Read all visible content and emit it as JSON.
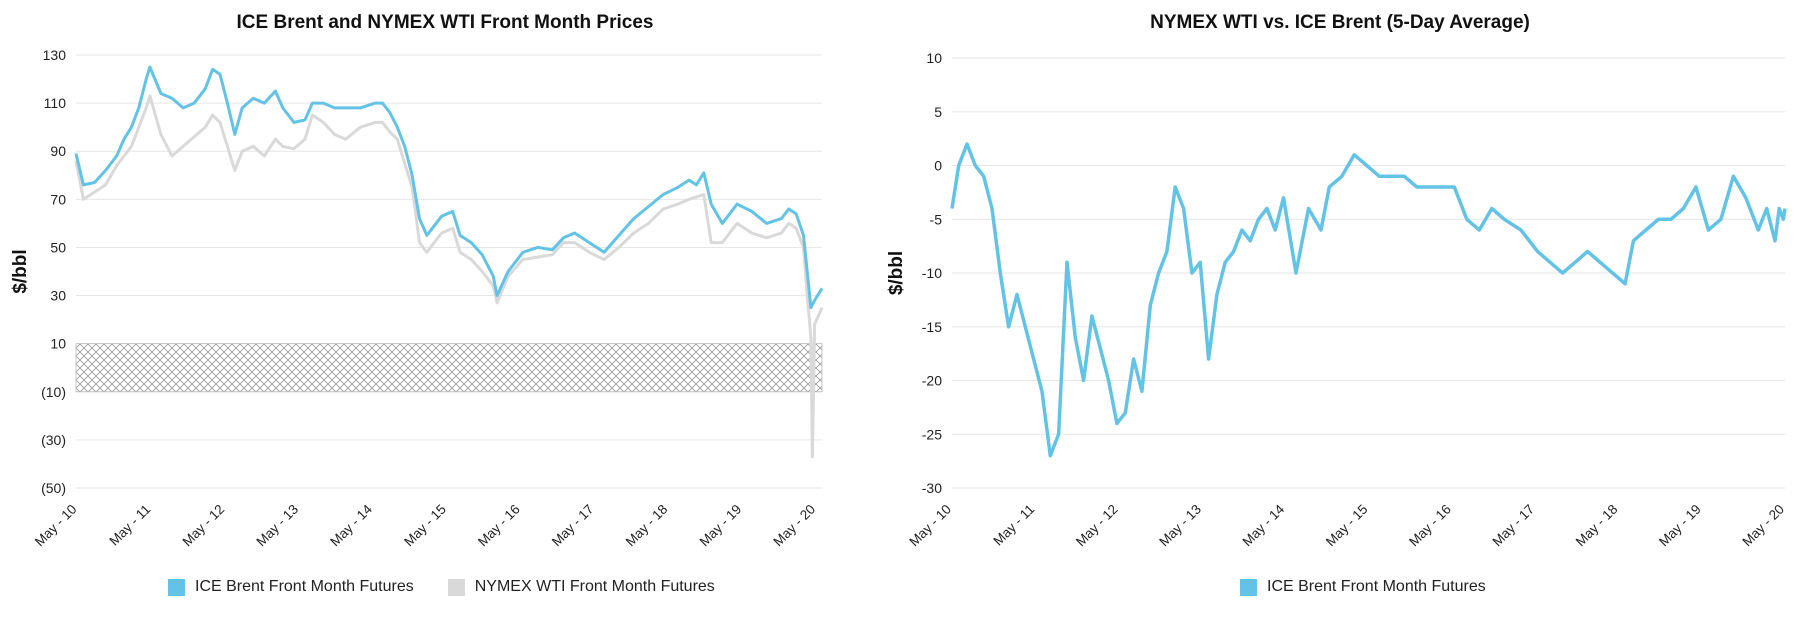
{
  "colors": {
    "brent": "#63c3e6",
    "wti": "#d9d9d9",
    "grid": "#e6e6e6",
    "hatch": "#999999"
  },
  "chart_data": [
    {
      "type": "line",
      "title": "ICE Brent and NYMEX WTI Front Month Prices",
      "ylabel": "$/bbl",
      "xlabel": "",
      "ylim": [
        -50,
        130
      ],
      "yticks": [
        130,
        110,
        90,
        70,
        50,
        30,
        10,
        -10,
        -30,
        -50
      ],
      "yticklabels": [
        "130",
        "110",
        "90",
        "70",
        "50",
        "30",
        "10",
        "(10)",
        "(30)",
        "(50)"
      ],
      "xlim": [
        2010.35,
        2020.45
      ],
      "xticks": [
        2010.37,
        2011.37,
        2012.37,
        2013.37,
        2014.37,
        2015.37,
        2016.37,
        2017.37,
        2018.37,
        2019.37,
        2020.37
      ],
      "xticklabels": [
        "May - 10",
        "May - 11",
        "May - 12",
        "May - 13",
        "May - 14",
        "May - 15",
        "May - 16",
        "May - 17",
        "May - 18",
        "May - 19",
        "May - 20"
      ],
      "grid": true,
      "hatched_band": [
        -10,
        10
      ],
      "legend": "bottom",
      "series": [
        {
          "name": "ICE Brent Front Month Futures",
          "x": [
            2010.35,
            2010.45,
            2010.6,
            2010.75,
            2010.9,
            2011.0,
            2011.1,
            2011.2,
            2011.3,
            2011.35,
            2011.5,
            2011.65,
            2011.8,
            2011.95,
            2012.1,
            2012.2,
            2012.3,
            2012.4,
            2012.5,
            2012.6,
            2012.75,
            2012.9,
            2013.05,
            2013.15,
            2013.3,
            2013.45,
            2013.55,
            2013.7,
            2013.85,
            2014.0,
            2014.2,
            2014.4,
            2014.5,
            2014.6,
            2014.7,
            2014.8,
            2014.9,
            2015.0,
            2015.1,
            2015.3,
            2015.45,
            2015.55,
            2015.7,
            2015.85,
            2016.0,
            2016.05,
            2016.2,
            2016.4,
            2016.6,
            2016.8,
            2016.95,
            2017.1,
            2017.3,
            2017.5,
            2017.7,
            2017.9,
            2018.1,
            2018.3,
            2018.5,
            2018.65,
            2018.75,
            2018.85,
            2018.95,
            2019.1,
            2019.3,
            2019.5,
            2019.7,
            2019.9,
            2020.0,
            2020.1,
            2020.2,
            2020.25,
            2020.3,
            2020.35,
            2020.45
          ],
          "values": [
            89,
            76,
            77,
            82,
            88,
            95,
            100,
            108,
            120,
            125,
            114,
            112,
            108,
            110,
            116,
            124,
            122,
            110,
            97,
            108,
            112,
            110,
            115,
            108,
            102,
            103,
            110,
            110,
            108,
            108,
            108,
            110,
            110,
            106,
            100,
            92,
            80,
            62,
            55,
            63,
            65,
            55,
            52,
            47,
            38,
            30,
            40,
            48,
            50,
            49,
            54,
            56,
            52,
            48,
            55,
            62,
            67,
            72,
            75,
            78,
            76,
            81,
            68,
            60,
            68,
            65,
            60,
            62,
            66,
            64,
            55,
            40,
            25,
            28,
            33
          ]
        },
        {
          "name": "NYMEX WTI Front Month Futures",
          "x": [
            2010.35,
            2010.45,
            2010.6,
            2010.75,
            2010.9,
            2011.0,
            2011.1,
            2011.2,
            2011.3,
            2011.35,
            2011.5,
            2011.65,
            2011.8,
            2011.95,
            2012.1,
            2012.2,
            2012.3,
            2012.4,
            2012.5,
            2012.6,
            2012.75,
            2012.9,
            2013.05,
            2013.15,
            2013.3,
            2013.45,
            2013.55,
            2013.7,
            2013.85,
            2014.0,
            2014.2,
            2014.4,
            2014.5,
            2014.6,
            2014.7,
            2014.8,
            2014.9,
            2015.0,
            2015.1,
            2015.3,
            2015.45,
            2015.55,
            2015.7,
            2015.85,
            2016.0,
            2016.05,
            2016.2,
            2016.4,
            2016.6,
            2016.8,
            2016.95,
            2017.1,
            2017.3,
            2017.5,
            2017.7,
            2017.9,
            2018.1,
            2018.3,
            2018.5,
            2018.65,
            2018.75,
            2018.85,
            2018.95,
            2019.1,
            2019.3,
            2019.5,
            2019.7,
            2019.9,
            2020.0,
            2020.1,
            2020.2,
            2020.25,
            2020.28,
            2020.3,
            2020.32,
            2020.35,
            2020.45
          ],
          "values": [
            86,
            70,
            73,
            76,
            84,
            88,
            92,
            100,
            108,
            113,
            97,
            88,
            92,
            96,
            100,
            105,
            102,
            92,
            82,
            90,
            92,
            88,
            95,
            92,
            91,
            95,
            105,
            102,
            97,
            95,
            100,
            102,
            102,
            98,
            95,
            85,
            75,
            52,
            48,
            56,
            58,
            48,
            45,
            40,
            34,
            27,
            38,
            45,
            46,
            47,
            52,
            52,
            48,
            45,
            50,
            56,
            60,
            66,
            68,
            70,
            71,
            72,
            52,
            52,
            60,
            56,
            54,
            56,
            60,
            58,
            50,
            30,
            20,
            12,
            -37,
            18,
            25
          ]
        }
      ]
    },
    {
      "type": "line",
      "title": "NYMEX WTI vs. ICE Brent (5-Day Average)",
      "ylabel": "$/bbl",
      "xlabel": "",
      "ylim": [
        -30,
        10
      ],
      "yticks": [
        10,
        5,
        0,
        -5,
        -10,
        -15,
        -20,
        -25,
        -30
      ],
      "yticklabels": [
        "10",
        "5",
        "0",
        "-5",
        "-10",
        "-15",
        "-20",
        "-25",
        "-30"
      ],
      "xlim": [
        2010.37,
        2020.37
      ],
      "xticks": [
        2010.37,
        2011.37,
        2012.37,
        2013.37,
        2014.37,
        2015.37,
        2016.37,
        2017.37,
        2018.37,
        2019.37,
        2020.37
      ],
      "xticklabels": [
        "May - 10",
        "May - 11",
        "May - 12",
        "May - 13",
        "May - 14",
        "May - 15",
        "May - 16",
        "May - 17",
        "May - 18",
        "May - 19",
        "May - 20"
      ],
      "grid": true,
      "legend": "bottom",
      "series": [
        {
          "name": "ICE Brent Front Month Futures",
          "x": [
            2010.37,
            2010.45,
            2010.55,
            2010.65,
            2010.75,
            2010.85,
            2010.95,
            2011.05,
            2011.15,
            2011.25,
            2011.35,
            2011.45,
            2011.55,
            2011.65,
            2011.75,
            2011.85,
            2011.95,
            2012.05,
            2012.15,
            2012.25,
            2012.35,
            2012.45,
            2012.55,
            2012.65,
            2012.75,
            2012.85,
            2012.95,
            2013.05,
            2013.15,
            2013.25,
            2013.35,
            2013.45,
            2013.55,
            2013.65,
            2013.75,
            2013.85,
            2013.95,
            2014.05,
            2014.15,
            2014.25,
            2014.35,
            2014.5,
            2014.65,
            2014.8,
            2014.9,
            2015.05,
            2015.2,
            2015.35,
            2015.5,
            2015.65,
            2015.8,
            2015.95,
            2016.1,
            2016.25,
            2016.4,
            2016.55,
            2016.7,
            2016.85,
            2017.0,
            2017.2,
            2017.4,
            2017.55,
            2017.7,
            2017.85,
            2018.0,
            2018.15,
            2018.3,
            2018.45,
            2018.55,
            2018.7,
            2018.85,
            2019.0,
            2019.15,
            2019.3,
            2019.45,
            2019.6,
            2019.75,
            2019.9,
            2020.05,
            2020.15,
            2020.25,
            2020.3,
            2020.35,
            2020.37
          ],
          "values": [
            -4,
            0,
            2,
            0,
            -1,
            -4,
            -10,
            -15,
            -12,
            -15,
            -18,
            -21,
            -27,
            -25,
            -9,
            -16,
            -20,
            -14,
            -17,
            -20,
            -24,
            -23,
            -18,
            -21,
            -13,
            -10,
            -8,
            -2,
            -4,
            -10,
            -9,
            -18,
            -12,
            -9,
            -8,
            -6,
            -7,
            -5,
            -4,
            -6,
            -3,
            -10,
            -4,
            -6,
            -2,
            -1,
            1,
            0,
            -1,
            -1,
            -1,
            -2,
            -2,
            -2,
            -2,
            -5,
            -6,
            -4,
            -5,
            -6,
            -8,
            -9,
            -10,
            -9,
            -8,
            -9,
            -10,
            -11,
            -7,
            -6,
            -5,
            -5,
            -4,
            -2,
            -6,
            -5,
            -1,
            -3,
            -6,
            -4,
            -7,
            -4,
            -5,
            -4
          ]
        }
      ]
    }
  ]
}
